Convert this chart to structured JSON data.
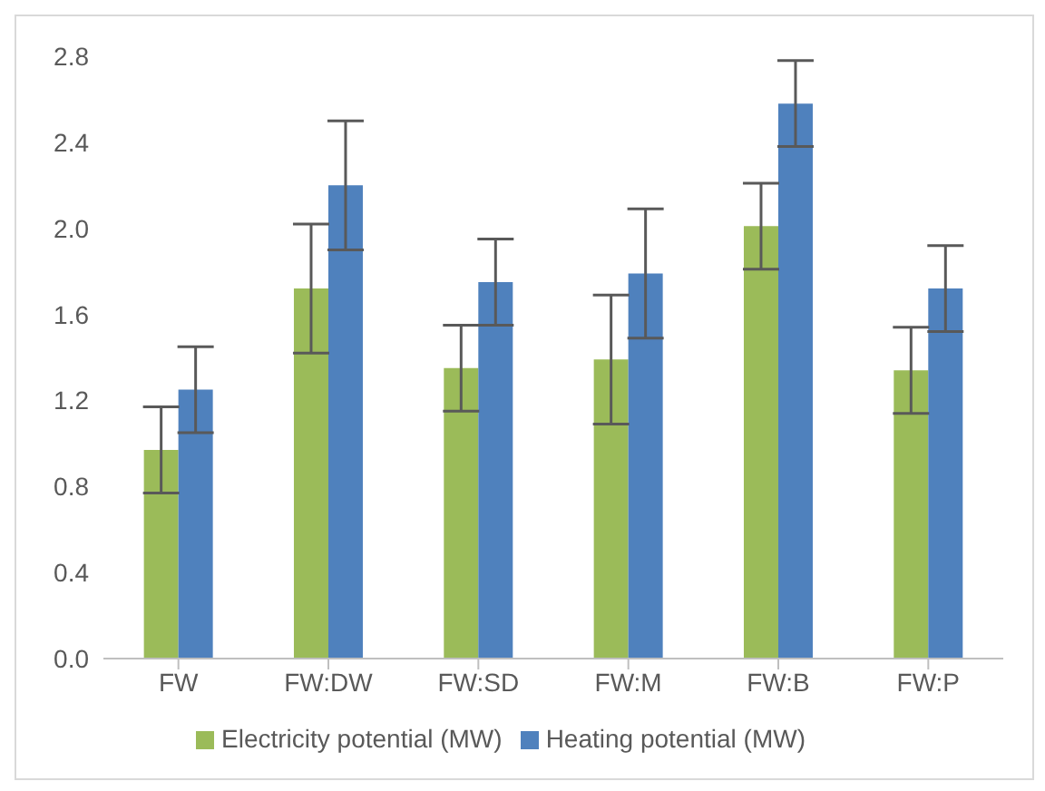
{
  "chart_data": {
    "type": "bar",
    "categories": [
      "FW",
      "FW:DW",
      "FW:SD",
      "FW:M",
      "FW:B",
      "FW:P"
    ],
    "series": [
      {
        "name": "Electricity potential (MW)",
        "color": "#9bbb59",
        "values": [
          0.97,
          1.72,
          1.35,
          1.39,
          2.01,
          1.34
        ],
        "errors": [
          0.2,
          0.3,
          0.2,
          0.3,
          0.2,
          0.2
        ]
      },
      {
        "name": "Heating potential (MW)",
        "color": "#4f81bd",
        "values": [
          1.25,
          2.2,
          1.75,
          1.79,
          2.58,
          1.72
        ],
        "errors": [
          0.2,
          0.3,
          0.2,
          0.3,
          0.2,
          0.2
        ]
      }
    ],
    "ylim": [
      0,
      2.8
    ],
    "yticks": [
      {
        "value": 0,
        "label": "0.0"
      },
      0.4,
      0.8,
      1.2,
      1.6,
      {
        "value": 2,
        "label": "2.0"
      },
      2.4,
      2.8
    ],
    "legend": "bottom"
  }
}
